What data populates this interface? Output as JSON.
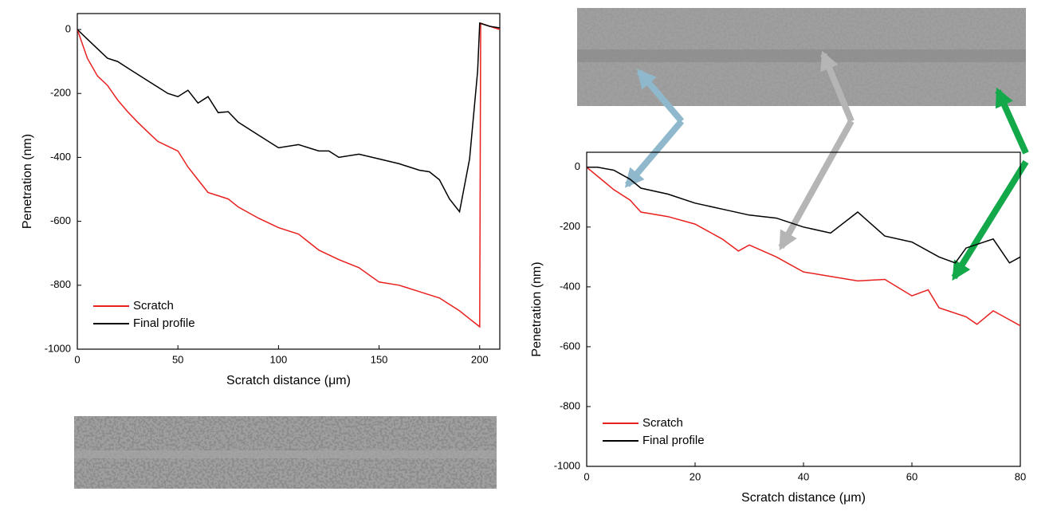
{
  "chart_data": [
    {
      "type": "line",
      "xlabel": "Scratch distance (μm)",
      "ylabel": "Penetration (nm)",
      "xlim": [
        0,
        210
      ],
      "ylim": [
        -1000,
        50
      ],
      "xticks": [
        0,
        50,
        100,
        150,
        200
      ],
      "yticks": [
        0,
        -200,
        -400,
        -600,
        -800,
        -1000
      ],
      "legend": "lower left",
      "series": [
        {
          "name": "Scratch",
          "color": "#e8201e",
          "x": [
            0,
            5,
            10,
            15,
            20,
            25,
            30,
            35,
            40,
            45,
            50,
            55,
            60,
            65,
            70,
            75,
            80,
            90,
            100,
            110,
            120,
            130,
            140,
            150,
            160,
            170,
            175,
            180,
            190,
            195,
            200,
            200.5,
            205,
            210
          ],
          "values": [
            0,
            -90,
            -145,
            -175,
            -220,
            -257,
            -290,
            -320,
            -350,
            -365,
            -380,
            -430,
            -470,
            -510,
            -520,
            -530,
            -555,
            -590,
            -620,
            -640,
            -690,
            -720,
            -745,
            -790,
            -800,
            -820,
            -830,
            -840,
            -880,
            -905,
            -930,
            20,
            10,
            0
          ]
        },
        {
          "name": "Final profile",
          "color": "#000000",
          "x": [
            0,
            5,
            10,
            15,
            20,
            25,
            30,
            35,
            40,
            45,
            50,
            55,
            60,
            65,
            70,
            75,
            80,
            90,
            100,
            110,
            120,
            125,
            130,
            140,
            150,
            160,
            170,
            175,
            180,
            185,
            190,
            195,
            199,
            200,
            205,
            210
          ],
          "values": [
            0,
            -30,
            -60,
            -90,
            -100,
            -120,
            -140,
            -160,
            -180,
            -200,
            -210,
            -190,
            -230,
            -210,
            -260,
            -257,
            -290,
            -330,
            -370,
            -360,
            -380,
            -380,
            -400,
            -390,
            -405,
            -420,
            -440,
            -445,
            -470,
            -530,
            -570,
            -405,
            -130,
            20,
            10,
            5
          ]
        }
      ]
    },
    {
      "type": "line",
      "xlabel": "Scratch distance (μm)",
      "ylabel": "Penetration (nm)",
      "xlim": [
        0,
        80
      ],
      "ylim": [
        -1000,
        50
      ],
      "xticks": [
        0,
        20,
        40,
        60,
        80
      ],
      "yticks": [
        0,
        -200,
        -400,
        -600,
        -800,
        -1000
      ],
      "legend": "lower left",
      "series": [
        {
          "name": "Scratch",
          "color": "#e8201e",
          "x": [
            0,
            2,
            5,
            8,
            10,
            15,
            20,
            25,
            28,
            30,
            35,
            40,
            45,
            50,
            55,
            60,
            63,
            65,
            70,
            72,
            75,
            78,
            80
          ],
          "values": [
            0,
            -30,
            -75,
            -110,
            -150,
            -165,
            -190,
            -240,
            -280,
            -260,
            -300,
            -350,
            -365,
            -380,
            -375,
            -430,
            -410,
            -470,
            -500,
            -525,
            -480,
            -510,
            -530
          ]
        },
        {
          "name": "Final profile",
          "color": "#000000",
          "x": [
            0,
            2,
            5,
            8,
            10,
            15,
            20,
            25,
            30,
            35,
            40,
            45,
            50,
            55,
            60,
            65,
            68,
            70,
            75,
            78,
            80
          ],
          "values": [
            0,
            0,
            -10,
            -40,
            -70,
            -90,
            -120,
            -140,
            -160,
            -170,
            -200,
            -220,
            -150,
            -230,
            -250,
            -300,
            -320,
            -270,
            -240,
            -320,
            -300
          ]
        }
      ]
    }
  ]
}
